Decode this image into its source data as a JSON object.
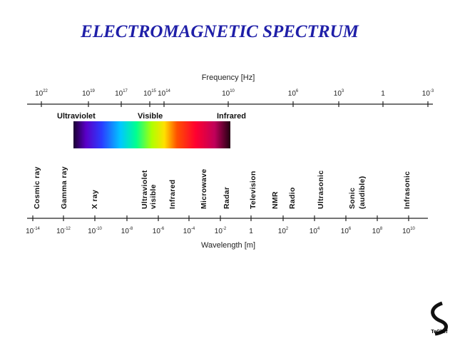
{
  "header": {
    "title": "ELECTROMAGNETIC SPECTRUM"
  },
  "frequency_axis": {
    "label": "Frequency [Hz]",
    "ticks": [
      {
        "base": "10",
        "exp": "22"
      },
      {
        "base": "10",
        "exp": "19"
      },
      {
        "base": "10",
        "exp": "17"
      },
      {
        "base": "10",
        "exp": "15"
      },
      {
        "base": "10",
        "exp": "14"
      },
      {
        "base": "10",
        "exp": "10"
      },
      {
        "base": "10",
        "exp": "6"
      },
      {
        "base": "10",
        "exp": "3"
      },
      {
        "base": "1"
      },
      {
        "base": "10",
        "exp": "-3"
      }
    ]
  },
  "bands": [
    "Ultraviolet",
    "Visible",
    "Infrared"
  ],
  "regions": [
    [
      "Cosmic ray"
    ],
    [
      "Gamma ray"
    ],
    [
      "X ray"
    ],
    [
      "Ultraviolet",
      "visible"
    ],
    [
      "Infrared"
    ],
    [
      "Microwave"
    ],
    [
      "Radar"
    ],
    [
      "Television"
    ],
    [
      "NMR"
    ],
    [
      "Radio"
    ],
    [
      "Ultrasonic"
    ],
    [
      "Sonic",
      "(audible)"
    ],
    [
      "Infrasonic"
    ]
  ],
  "wavelength_axis": {
    "label": "Wavelength [m]",
    "ticks": [
      {
        "base": "10",
        "exp": "-14"
      },
      {
        "base": "10",
        "exp": "-12"
      },
      {
        "base": "10",
        "exp": "-10"
      },
      {
        "base": "10",
        "exp": "-8"
      },
      {
        "base": "10",
        "exp": "-6"
      },
      {
        "base": "10",
        "exp": "-4"
      },
      {
        "base": "10",
        "exp": "-2"
      },
      {
        "base": "1"
      },
      {
        "base": "10",
        "exp": "2"
      },
      {
        "base": "10",
        "exp": "4"
      },
      {
        "base": "10",
        "exp": "6"
      },
      {
        "base": "10",
        "exp": "8"
      },
      {
        "base": "10",
        "exp": "10"
      }
    ]
  },
  "logo": {
    "name": "TeChef"
  }
}
